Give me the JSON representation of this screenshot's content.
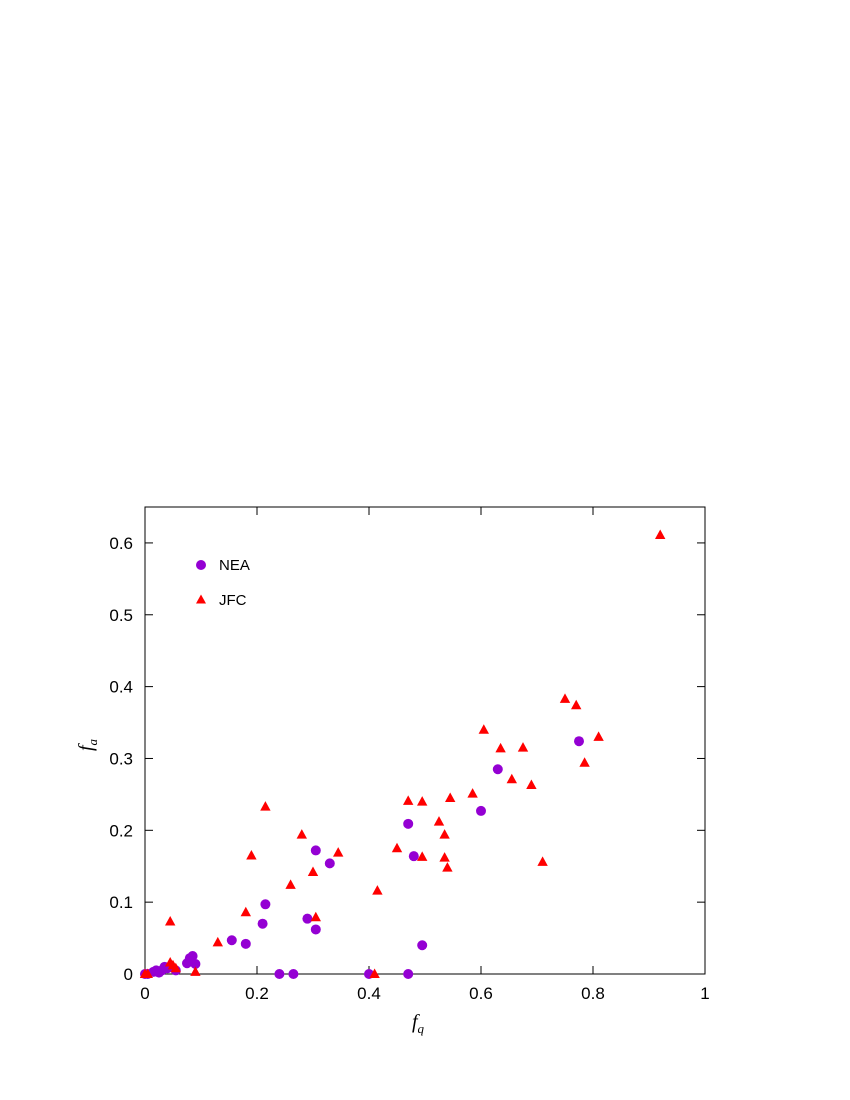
{
  "chart_data": {
    "type": "scatter",
    "title": "",
    "xlabel": {
      "main": "f",
      "sub": "q"
    },
    "ylabel": {
      "main": "f",
      "sub": "a"
    },
    "xlim": [
      0,
      1
    ],
    "ylim": [
      0,
      0.65
    ],
    "xticks": [
      0,
      0.2,
      0.4,
      0.6,
      0.8,
      1
    ],
    "xtick_labels": [
      "0",
      "0.2",
      "0.4",
      "0.6",
      "0.8",
      "1"
    ],
    "yticks": [
      0,
      0.1,
      0.2,
      0.3,
      0.4,
      0.5,
      0.6
    ],
    "ytick_labels": [
      "0",
      "0.1",
      "0.2",
      "0.3",
      "0.4",
      "0.5",
      "0.6"
    ],
    "grid": false,
    "legend_position": "top-left",
    "series": [
      {
        "name": "NEA",
        "marker": "circle",
        "color": "#9400D3",
        "x": [
          0.0,
          0.005,
          0.015,
          0.02,
          0.025,
          0.03,
          0.035,
          0.04,
          0.045,
          0.055,
          0.075,
          0.08,
          0.085,
          0.09,
          0.155,
          0.18,
          0.21,
          0.215,
          0.24,
          0.265,
          0.29,
          0.305,
          0.305,
          0.33,
          0.4,
          0.47,
          0.47,
          0.48,
          0.495,
          0.6,
          0.63,
          0.775
        ],
        "y": [
          0.0,
          0.0,
          0.003,
          0.005,
          0.002,
          0.005,
          0.01,
          0.008,
          0.01,
          0.005,
          0.015,
          0.022,
          0.025,
          0.014,
          0.047,
          0.042,
          0.07,
          0.097,
          0.0,
          0.0,
          0.077,
          0.062,
          0.172,
          0.154,
          0.0,
          0.0,
          0.209,
          0.164,
          0.04,
          0.227,
          0.285,
          0.324
        ]
      },
      {
        "name": "JFC",
        "marker": "triangle",
        "color": "#FF0000",
        "x": [
          0.0,
          0.005,
          0.045,
          0.045,
          0.05,
          0.055,
          0.09,
          0.13,
          0.18,
          0.19,
          0.215,
          0.26,
          0.28,
          0.3,
          0.305,
          0.345,
          0.41,
          0.415,
          0.45,
          0.47,
          0.495,
          0.495,
          0.525,
          0.535,
          0.535,
          0.54,
          0.545,
          0.585,
          0.605,
          0.635,
          0.655,
          0.675,
          0.69,
          0.71,
          0.75,
          0.77,
          0.785,
          0.81,
          0.92
        ],
        "y": [
          0.0,
          0.0,
          0.073,
          0.016,
          0.012,
          0.008,
          0.003,
          0.044,
          0.086,
          0.165,
          0.233,
          0.124,
          0.194,
          0.142,
          0.079,
          0.169,
          0.0,
          0.116,
          0.175,
          0.241,
          0.24,
          0.163,
          0.212,
          0.194,
          0.162,
          0.148,
          0.245,
          0.251,
          0.34,
          0.314,
          0.271,
          0.315,
          0.263,
          0.156,
          0.383,
          0.374,
          0.294,
          0.33,
          0.611
        ]
      }
    ]
  }
}
